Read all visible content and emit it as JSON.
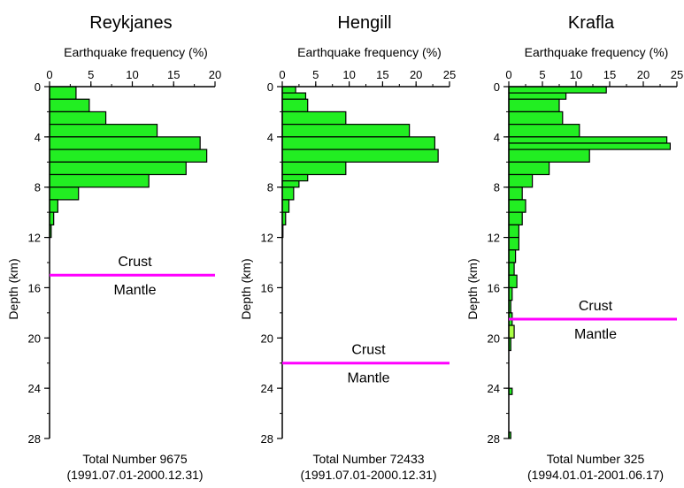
{
  "chart_data": [
    {
      "type": "bar",
      "orientation": "horizontal-step",
      "title": "Reykjanes",
      "xlabel": "Earthquake frequency (%)",
      "ylabel": "Depth (km)",
      "xlim": [
        0,
        20
      ],
      "xticks": [
        0,
        5,
        10,
        15,
        20
      ],
      "ylim": [
        0,
        28
      ],
      "yticks": [
        0,
        4,
        8,
        12,
        16,
        20,
        24,
        28
      ],
      "depth_bins": [
        [
          0,
          1
        ],
        [
          1,
          2
        ],
        [
          2,
          3
        ],
        [
          3,
          4
        ],
        [
          4,
          5
        ],
        [
          5,
          6
        ],
        [
          6,
          7
        ],
        [
          7,
          8
        ],
        [
          8,
          9
        ],
        [
          9,
          10
        ],
        [
          10,
          11
        ],
        [
          11,
          12
        ]
      ],
      "values": [
        3.2,
        4.8,
        6.8,
        13.0,
        18.2,
        19.0,
        16.5,
        12.0,
        3.5,
        1.0,
        0.5,
        0.2
      ],
      "boundary_depth": 15.0,
      "boundary_label_above": "Crust",
      "boundary_label_below": "Mantle",
      "footer_line1": "Total Number 9675",
      "footer_line2": "(1991.07.01-2000.12.31)"
    },
    {
      "type": "bar",
      "orientation": "horizontal-step",
      "title": "Hengill",
      "xlabel": "Earthquake frequency (%)",
      "ylabel": "Depth (km)",
      "xlim": [
        0,
        25
      ],
      "xticks": [
        0,
        5,
        10,
        15,
        20,
        25
      ],
      "ylim": [
        0,
        28
      ],
      "yticks": [
        0,
        4,
        8,
        12,
        16,
        20,
        24,
        28
      ],
      "depth_bins": [
        [
          0,
          0.5
        ],
        [
          0.5,
          1
        ],
        [
          1,
          2
        ],
        [
          2,
          3
        ],
        [
          3,
          4
        ],
        [
          4,
          5
        ],
        [
          5,
          6
        ],
        [
          6,
          7
        ],
        [
          7,
          7.5
        ],
        [
          7.5,
          8
        ],
        [
          8,
          9
        ],
        [
          9,
          10
        ],
        [
          10,
          11
        ],
        [
          11,
          12
        ]
      ],
      "values": [
        2.0,
        3.5,
        3.8,
        9.5,
        19.0,
        22.8,
        23.3,
        9.5,
        3.8,
        2.5,
        1.7,
        1.0,
        0.5,
        0.1
      ],
      "boundary_depth": 22.0,
      "boundary_label_above": "Crust",
      "boundary_label_below": "Mantle",
      "footer_line1": "Total Number 72433",
      "footer_line2": "(1991.07.01-2000.12.31)"
    },
    {
      "type": "bar",
      "orientation": "horizontal-step",
      "title": "Krafla",
      "xlabel": "Earthquake frequency (%)",
      "ylabel": "Depth (km)",
      "xlim": [
        0,
        25
      ],
      "xticks": [
        0,
        5,
        10,
        15,
        20,
        25
      ],
      "ylim": [
        0,
        28
      ],
      "yticks": [
        0,
        4,
        8,
        12,
        16,
        20,
        24,
        28
      ],
      "depth_bins": [
        [
          0,
          0.5
        ],
        [
          0.5,
          1
        ],
        [
          1,
          2
        ],
        [
          2,
          3
        ],
        [
          3,
          4
        ],
        [
          4,
          4.5
        ],
        [
          4.5,
          5
        ],
        [
          5,
          6
        ],
        [
          6,
          7
        ],
        [
          7,
          8
        ],
        [
          8,
          9
        ],
        [
          9,
          10
        ],
        [
          10,
          11
        ],
        [
          11,
          12
        ],
        [
          12,
          13
        ],
        [
          13,
          14
        ],
        [
          14,
          15
        ],
        [
          15,
          16
        ],
        [
          16,
          17
        ],
        [
          17,
          18
        ],
        [
          18,
          19
        ],
        [
          19,
          20
        ],
        [
          20,
          21
        ],
        [
          24,
          24.5
        ],
        [
          27.5,
          28
        ]
      ],
      "values": [
        14.5,
        8.5,
        7.5,
        8.0,
        10.5,
        23.5,
        24.0,
        12.0,
        6.0,
        3.5,
        2.0,
        2.5,
        2.0,
        1.5,
        1.5,
        1.0,
        0.8,
        1.2,
        0.5,
        0.3,
        0.5,
        0.8,
        0.3,
        0.5,
        0.3
      ],
      "boundary_depth": 18.5,
      "boundary_label_above": "Crust",
      "boundary_label_below": "Mantle",
      "footer_line1": "Total Number 325",
      "footer_line2": "(1994.01.01-2001.06.17)"
    }
  ],
  "colors": {
    "fill": "#22ee22",
    "fill_highlight": "#aaff44",
    "boundary": "#ff00ff",
    "axis": "#000000"
  }
}
